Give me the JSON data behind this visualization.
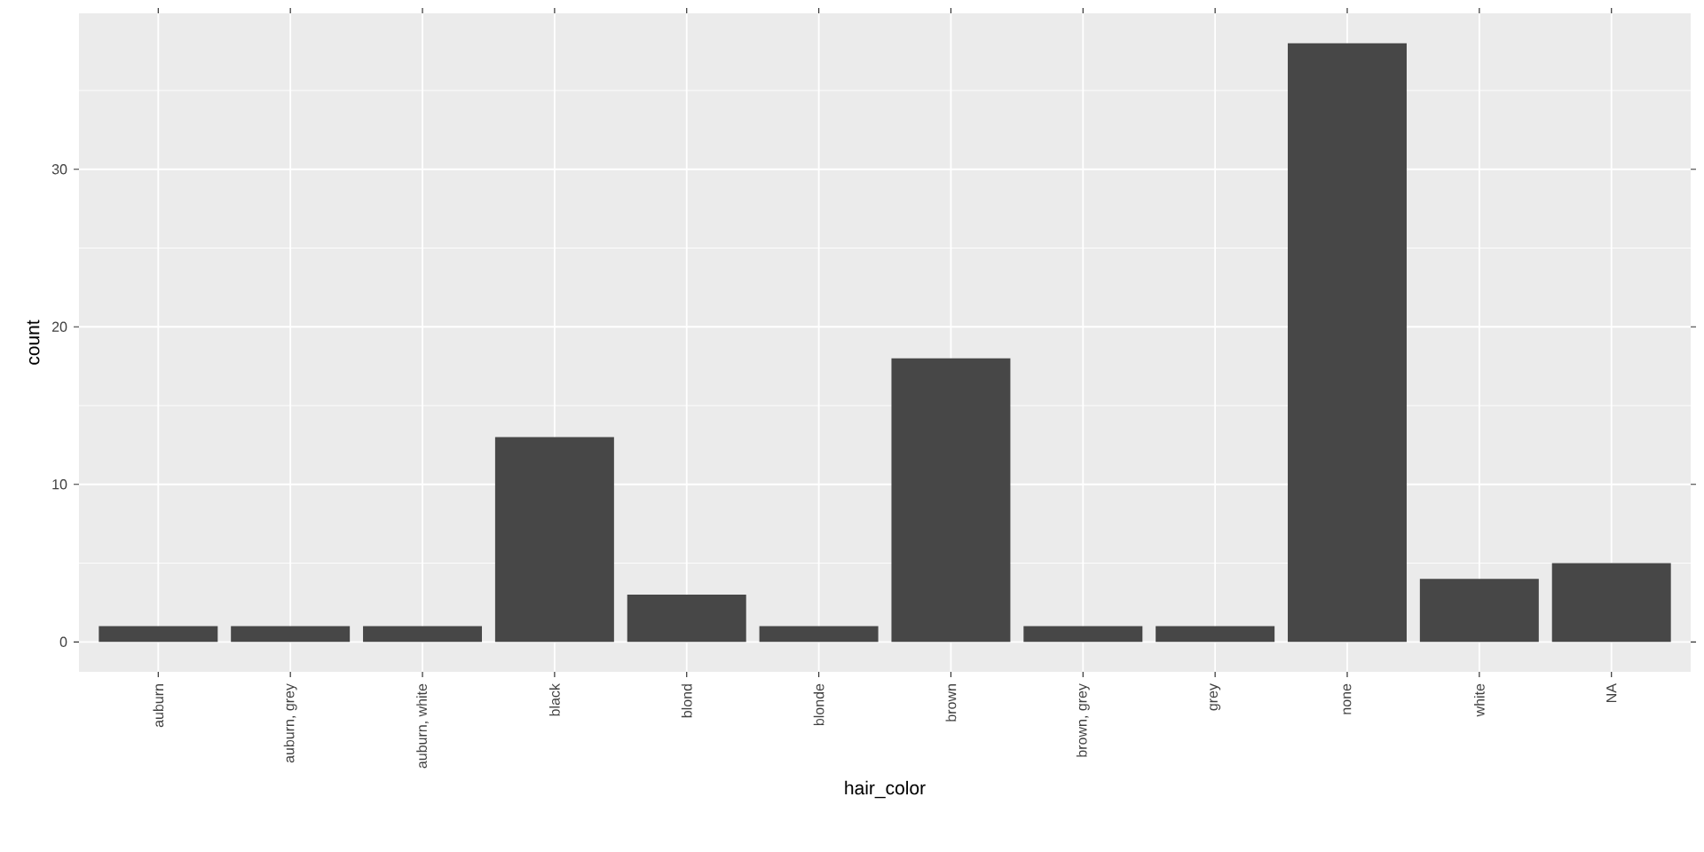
{
  "chart_data": {
    "type": "bar",
    "xlabel": "hair_color",
    "ylabel": "count",
    "categories": [
      "auburn",
      "auburn, grey",
      "auburn, white",
      "black",
      "blond",
      "blonde",
      "brown",
      "brown, grey",
      "grey",
      "none",
      "white",
      "NA"
    ],
    "values": [
      1,
      1,
      1,
      13,
      3,
      1,
      18,
      1,
      1,
      38,
      4,
      5
    ],
    "color": "#474747",
    "ylim": [
      -1.9,
      39.9
    ],
    "yticks": [
      0,
      10,
      20,
      30
    ],
    "grid": true
  }
}
